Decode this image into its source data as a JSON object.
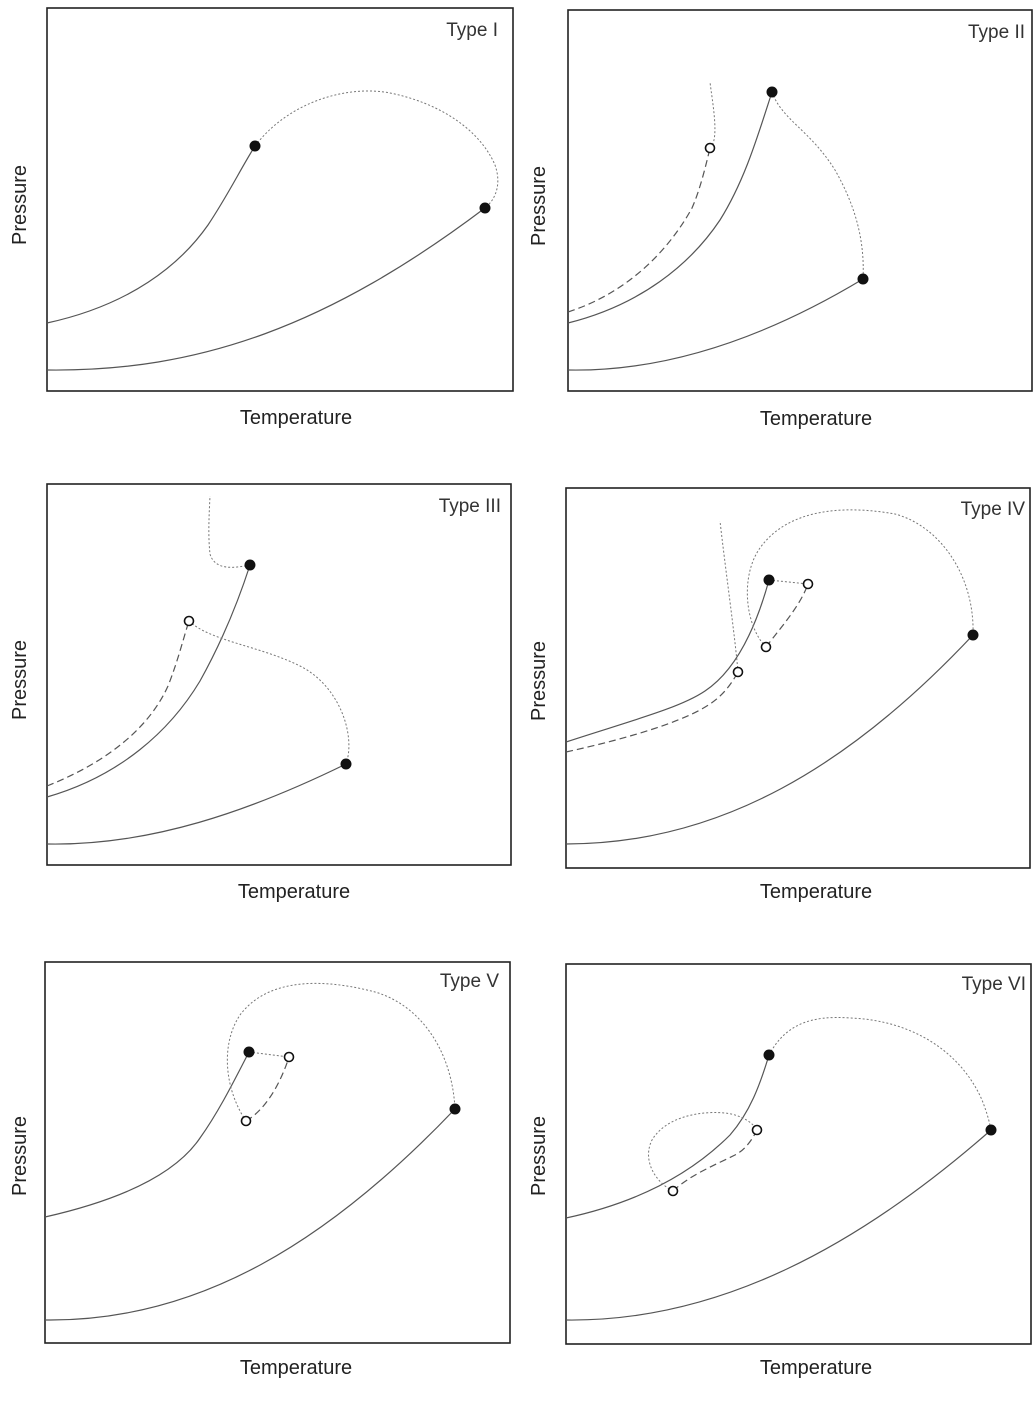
{
  "figure": {
    "axis_x_label": "Temperature",
    "axis_y_label": "Pressure",
    "panels": [
      {
        "type_label": "Type I"
      },
      {
        "type_label": "Type II"
      },
      {
        "type_label": "Type III"
      },
      {
        "type_label": "Type IV"
      },
      {
        "type_label": "Type V"
      },
      {
        "type_label": "Type VI"
      }
    ]
  }
}
